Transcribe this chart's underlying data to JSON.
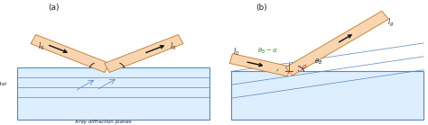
{
  "bg_color": "#ffffff",
  "crystal_color": "#ddeeff",
  "crystal_border": "#5588bb",
  "beam_fill": "#f8d5b0",
  "beam_edge": "#c07828",
  "arrow_color": "#111111",
  "line_color": "#5588bb",
  "angle_color_green": "#229922",
  "angle_color_red": "#cc2222",
  "label_a": "(a)",
  "label_b": "(b)",
  "theta_B": 25,
  "alpha": 10,
  "text_color": "#222222",
  "figsize": [
    4.74,
    1.39
  ],
  "dpi": 100
}
